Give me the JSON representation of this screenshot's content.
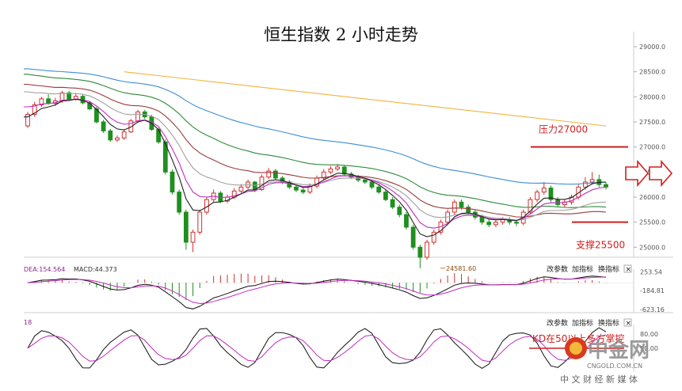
{
  "chart_data": {
    "type": "candlestick",
    "title": "恒生指数 2 小时走势",
    "y_axis": {
      "ylim": [
        24800,
        29300
      ],
      "ticks": [
        "29000.0",
        "28500.0",
        "28000.0",
        "27500.0",
        "27000.0",
        "26500.0",
        "26000.0",
        "25500.0",
        "25000.0"
      ]
    },
    "price_series": {
      "open": [
        27420,
        27650,
        27840,
        27960,
        27870,
        27920,
        28080,
        27950,
        28010,
        27880,
        27760,
        27500,
        27320,
        27140,
        27180,
        27300,
        27520,
        27700,
        27600,
        27350,
        27100,
        26500,
        26100,
        25700,
        25100,
        25300,
        25700,
        25950,
        26080,
        25920,
        26000,
        26120,
        26200,
        26300,
        26150,
        26400,
        26520,
        26380,
        26300,
        26200,
        26140,
        26100,
        26220,
        26380,
        26500,
        26560,
        26600,
        26460,
        26400,
        26340,
        26300,
        26200,
        26100,
        25950,
        25800,
        25650,
        25400,
        25000,
        24800,
        25100,
        25300,
        25500,
        25700,
        25900,
        25800,
        25700,
        25600,
        25500,
        25450,
        25500,
        25550,
        25500,
        25480,
        25700,
        25950,
        26100,
        26180,
        25950,
        25850,
        25900,
        26000,
        26200,
        26300,
        26350,
        26250
      ],
      "close": [
        27650,
        27840,
        27960,
        27870,
        27920,
        28080,
        27950,
        28010,
        27880,
        27760,
        27500,
        27320,
        27140,
        27180,
        27300,
        27520,
        27700,
        27600,
        27350,
        27100,
        26500,
        26100,
        25700,
        25100,
        25300,
        25700,
        25950,
        26080,
        25920,
        26000,
        26120,
        26200,
        26300,
        26150,
        26400,
        26520,
        26380,
        26300,
        26200,
        26140,
        26100,
        26220,
        26380,
        26500,
        26560,
        26600,
        26460,
        26400,
        26340,
        26300,
        26200,
        26100,
        25950,
        25800,
        25650,
        25400,
        25000,
        24800,
        25100,
        25300,
        25500,
        25700,
        25900,
        25800,
        25700,
        25600,
        25500,
        25450,
        25500,
        25550,
        25500,
        25480,
        25700,
        25950,
        26100,
        26180,
        25950,
        25850,
        25900,
        26000,
        26200,
        26300,
        26350,
        26250,
        26200
      ],
      "high": [
        27700,
        27900,
        28000,
        28050,
        27980,
        28120,
        28120,
        28060,
        28060,
        27920,
        27800,
        27540,
        27360,
        27230,
        27360,
        27560,
        27740,
        27740,
        27640,
        27380,
        27150,
        26550,
        26150,
        25750,
        25350,
        25750,
        26000,
        26150,
        26120,
        26050,
        26180,
        26260,
        26350,
        26320,
        26450,
        26580,
        26560,
        26420,
        26340,
        26250,
        26180,
        26270,
        26430,
        26560,
        26620,
        26660,
        26640,
        26500,
        26440,
        26380,
        26340,
        26250,
        26150,
        26000,
        25850,
        25700,
        25450,
        25050,
        25150,
        25350,
        25550,
        25750,
        25950,
        25950,
        25850,
        25750,
        25650,
        25550,
        25550,
        25600,
        25600,
        25550,
        25750,
        26000,
        26150,
        26300,
        26230,
        26000,
        25950,
        26050,
        26250,
        26400,
        26500,
        26450,
        26300
      ],
      "low": [
        27380,
        27600,
        27800,
        27840,
        27820,
        27880,
        27920,
        27920,
        27850,
        27730,
        27470,
        27280,
        27100,
        27100,
        27140,
        27280,
        27480,
        27560,
        27320,
        27060,
        26450,
        26050,
        25650,
        24950,
        24900,
        25250,
        25650,
        25900,
        25880,
        25880,
        25960,
        26080,
        26160,
        26100,
        26120,
        26360,
        26340,
        26260,
        26160,
        26100,
        26060,
        26060,
        26180,
        26340,
        26460,
        26520,
        26420,
        26360,
        26300,
        26260,
        26160,
        26060,
        25920,
        25760,
        25600,
        25350,
        24950,
        24581.6,
        24750,
        25050,
        25250,
        25450,
        25650,
        25750,
        25650,
        25550,
        25450,
        25400,
        25400,
        25450,
        25450,
        25420,
        25440,
        25650,
        25900,
        26050,
        25900,
        25800,
        25800,
        25850,
        25950,
        26150,
        26250,
        26200,
        26150
      ]
    },
    "moving_averages": [
      {
        "name": "ma-blue",
        "color": "#3b8fd6",
        "y_start": 28560,
        "y_end": 26300
      },
      {
        "name": "ma-orange",
        "color": "#f0b43c",
        "y_start": 28500,
        "y_end": 27420
      },
      {
        "name": "ma-green",
        "color": "#2e8b3a",
        "y_start": 28450,
        "y_end": 25800
      },
      {
        "name": "ma-brown",
        "color": "#9b3a3a",
        "y_start": 28250,
        "y_end": 25700
      },
      {
        "name": "ma-gray",
        "color": "#a0a0a0",
        "y_start": 28100,
        "y_end": 25900
      },
      {
        "name": "ma-purple",
        "color": "#c02cc0",
        "y_start": 27800,
        "y_end": 26200
      },
      {
        "name": "ma-black",
        "color": "#222222",
        "y_start": 27600,
        "y_end": 26300
      }
    ],
    "annotations": {
      "resistance": {
        "label": "压力27000",
        "value": 27000
      },
      "support": {
        "label": "支撑25500",
        "value": 25500
      },
      "low_point": {
        "label": "24581.60",
        "value": 24581.6
      }
    },
    "macd": {
      "label_dea": "DEA:154.564",
      "label_macd": "MACD:44.373",
      "ticks": [
        "253.54",
        "-184.81",
        "-623.16"
      ],
      "ylim": [
        -700,
        320
      ]
    },
    "kdj": {
      "label": "18",
      "ticks": [
        "80.00",
        "50.00"
      ],
      "annotation": "KD在50以上多方掌控",
      "ylim": [
        0,
        100
      ]
    }
  },
  "toolbar": {
    "macd_buttons": [
      "改参数",
      "加指标",
      "换指标"
    ],
    "kdj_buttons": [
      "改参数",
      "加指标",
      "换指标"
    ],
    "close_glyph": "×"
  },
  "branding": {
    "name": "中金网",
    "domain": "CNGOLD.COM.CN",
    "tagline": "中 文 财 经 新 媒 体"
  }
}
